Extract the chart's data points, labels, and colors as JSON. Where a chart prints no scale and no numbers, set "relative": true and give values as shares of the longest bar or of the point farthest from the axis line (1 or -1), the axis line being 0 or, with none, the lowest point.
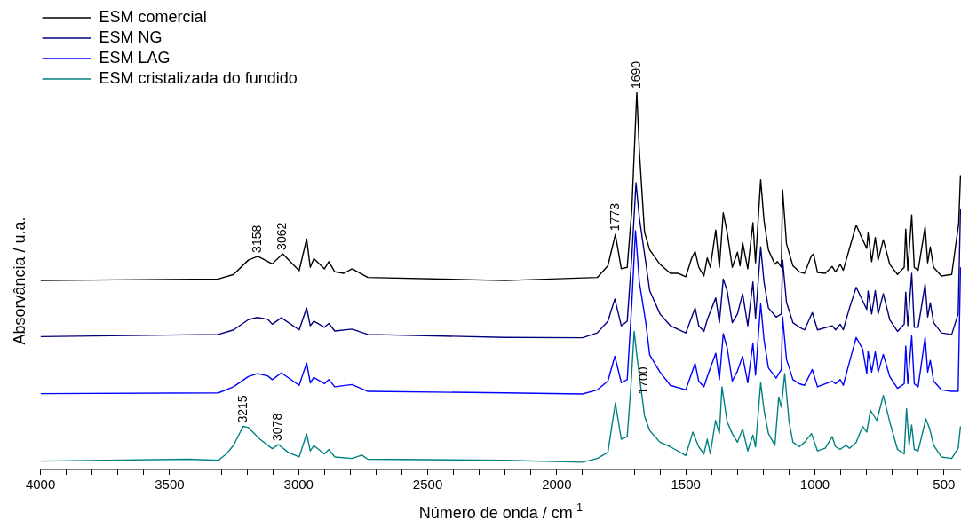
{
  "chart_data": {
    "type": "line",
    "relative": true,
    "xlabel": "Número de onda / cm$^{-1}$",
    "ylabel": "Absorvância / u.a.",
    "xlim": [
      4000,
      434
    ],
    "xticks": [
      4000,
      {
        "value": 3900,
        "label": null
      },
      {
        "value": 3800,
        "label": null
      },
      {
        "value": 3700,
        "label": null
      },
      {
        "value": 3600,
        "label": null
      },
      3500,
      {
        "value": 3400,
        "label": null
      },
      {
        "value": 3300,
        "label": null
      },
      {
        "value": 3200,
        "label": null
      },
      {
        "value": 3100,
        "label": null
      },
      3000,
      {
        "value": 2900,
        "label": null
      },
      {
        "value": 2800,
        "label": null
      },
      {
        "value": 2700,
        "label": null
      },
      {
        "value": 2600,
        "label": null
      },
      2500,
      {
        "value": 2400,
        "label": null
      },
      {
        "value": 2300,
        "label": null
      },
      {
        "value": 2200,
        "label": null
      },
      {
        "value": 2100,
        "label": null
      },
      2000,
      {
        "value": 1900,
        "label": null
      },
      {
        "value": 1800,
        "label": null
      },
      {
        "value": 1700,
        "label": null
      },
      {
        "value": 1600,
        "label": null
      },
      1500,
      {
        "value": 1400,
        "label": null
      },
      {
        "value": 1300,
        "label": null
      },
      {
        "value": 1200,
        "label": null
      },
      {
        "value": 1100,
        "label": null
      },
      1000,
      {
        "value": 900,
        "label": null
      },
      {
        "value": 800,
        "label": null
      },
      {
        "value": 700,
        "label": null
      },
      {
        "value": 600,
        "label": null
      },
      500
    ],
    "legend": "top left",
    "marker": "none",
    "line_style": "solid",
    "grid": false,
    "tick_labels": "x",
    "series": [
      {
        "name": "ESM comercial",
        "color": "#000000",
        "x": [
          4000,
          3311,
          3252,
          3195,
          3158,
          3102,
          3062,
          2998,
          2969,
          2955,
          2941,
          2900,
          2883,
          2860,
          2825,
          2793,
          2732,
          2200,
          1843,
          1802,
          1773,
          1750,
          1727,
          1709,
          1690,
          1680,
          1660,
          1640,
          1600,
          1560,
          1530,
          1500,
          1478,
          1464,
          1450,
          1430,
          1417,
          1405,
          1384,
          1370,
          1355,
          1340,
          1320,
          1300,
          1290,
          1280,
          1260,
          1240,
          1230,
          1210,
          1197,
          1180,
          1155,
          1145,
          1130,
          1125,
          1110,
          1085,
          1060,
          1040,
          1013,
          1005,
          990,
          960,
          933,
          920,
          902,
          890,
          866,
          840,
          815,
          799,
          794,
          780,
          766,
          755,
          735,
          710,
          680,
          654,
          648,
          640,
          625,
          615,
          600,
          573,
          563,
          553,
          540,
          510,
          470,
          443,
          436
        ],
        "values": [
          0.501,
          0.505,
          0.517,
          0.555,
          0.565,
          0.545,
          0.572,
          0.527,
          0.611,
          0.536,
          0.559,
          0.532,
          0.551,
          0.524,
          0.52,
          0.532,
          0.509,
          0.501,
          0.509,
          0.54,
          0.623,
          0.532,
          0.536,
          0.691,
          1.0,
          0.845,
          0.629,
          0.582,
          0.544,
          0.52,
          0.52,
          0.511,
          0.559,
          0.578,
          0.536,
          0.513,
          0.561,
          0.536,
          0.635,
          0.536,
          0.681,
          0.629,
          0.536,
          0.576,
          0.54,
          0.602,
          0.532,
          0.654,
          0.548,
          0.768,
          0.66,
          0.582,
          0.544,
          0.551,
          0.536,
          0.741,
          0.598,
          0.54,
          0.524,
          0.52,
          0.567,
          0.571,
          0.522,
          0.52,
          0.538,
          0.524,
          0.544,
          0.528,
          0.586,
          0.648,
          0.609,
          0.586,
          0.627,
          0.551,
          0.615,
          0.555,
          0.609,
          0.544,
          0.517,
          0.536,
          0.637,
          0.528,
          0.675,
          0.536,
          0.528,
          0.643,
          0.548,
          0.59,
          0.536,
          0.513,
          0.517,
          0.652,
          0.78
        ]
      },
      {
        "name": "ESM NG",
        "color": "#00007f",
        "x": [
          4000,
          3311,
          3252,
          3195,
          3160,
          3120,
          3102,
          3067,
          2998,
          2969,
          2955,
          2941,
          2900,
          2883,
          2860,
          2793,
          2732,
          2200,
          1900,
          1843,
          1802,
          1775,
          1750,
          1727,
          1709,
          1693,
          1680,
          1655,
          1640,
          1600,
          1560,
          1500,
          1464,
          1450,
          1430,
          1417,
          1384,
          1370,
          1355,
          1340,
          1320,
          1300,
          1280,
          1260,
          1240,
          1230,
          1210,
          1197,
          1180,
          1150,
          1130,
          1125,
          1110,
          1085,
          1060,
          1040,
          1010,
          990,
          933,
          920,
          902,
          890,
          866,
          840,
          815,
          799,
          794,
          780,
          766,
          755,
          735,
          710,
          680,
          654,
          648,
          640,
          625,
          615,
          600,
          573,
          563,
          553,
          540,
          510,
          470,
          445,
          436
        ],
        "values": [
          0.352,
          0.358,
          0.37,
          0.397,
          0.403,
          0.398,
          0.385,
          0.402,
          0.37,
          0.428,
          0.381,
          0.393,
          0.377,
          0.387,
          0.367,
          0.372,
          0.358,
          0.35,
          0.349,
          0.362,
          0.393,
          0.452,
          0.381,
          0.393,
          0.567,
          0.76,
          0.667,
          0.548,
          0.474,
          0.412,
          0.381,
          0.362,
          0.428,
          0.381,
          0.366,
          0.397,
          0.455,
          0.389,
          0.505,
          0.474,
          0.389,
          0.412,
          0.466,
          0.381,
          0.497,
          0.401,
          0.59,
          0.497,
          0.428,
          0.404,
          0.412,
          0.555,
          0.443,
          0.389,
          0.377,
          0.37,
          0.416,
          0.37,
          0.381,
          0.37,
          0.385,
          0.37,
          0.428,
          0.483,
          0.447,
          0.424,
          0.473,
          0.412,
          0.474,
          0.412,
          0.466,
          0.397,
          0.366,
          0.385,
          0.47,
          0.381,
          0.52,
          0.377,
          0.377,
          0.491,
          0.404,
          0.442,
          0.389,
          0.362,
          0.358,
          0.412,
          0.691
        ]
      },
      {
        "name": "ESM LAG",
        "color": "#0000ff",
        "x": [
          4000,
          3311,
          3252,
          3195,
          3160,
          3120,
          3102,
          3067,
          2998,
          2969,
          2955,
          2941,
          2900,
          2883,
          2860,
          2793,
          2732,
          2200,
          1900,
          1843,
          1802,
          1775,
          1750,
          1727,
          1709,
          1695,
          1680,
          1655,
          1640,
          1600,
          1560,
          1500,
          1464,
          1450,
          1430,
          1417,
          1384,
          1370,
          1355,
          1340,
          1320,
          1300,
          1280,
          1260,
          1240,
          1230,
          1210,
          1197,
          1180,
          1150,
          1130,
          1125,
          1110,
          1085,
          1060,
          1040,
          1010,
          990,
          933,
          920,
          902,
          890,
          866,
          840,
          815,
          799,
          794,
          780,
          766,
          755,
          735,
          710,
          680,
          654,
          648,
          640,
          625,
          615,
          600,
          573,
          563,
          553,
          540,
          510,
          470,
          445,
          436
        ],
        "values": [
          0.201,
          0.203,
          0.219,
          0.246,
          0.254,
          0.248,
          0.238,
          0.256,
          0.223,
          0.282,
          0.23,
          0.244,
          0.227,
          0.238,
          0.219,
          0.225,
          0.207,
          0.203,
          0.2,
          0.211,
          0.234,
          0.3,
          0.23,
          0.238,
          0.443,
          0.633,
          0.497,
          0.389,
          0.304,
          0.258,
          0.223,
          0.211,
          0.281,
          0.234,
          0.219,
          0.246,
          0.308,
          0.238,
          0.36,
          0.323,
          0.234,
          0.261,
          0.3,
          0.23,
          0.335,
          0.25,
          0.439,
          0.343,
          0.269,
          0.242,
          0.265,
          0.404,
          0.292,
          0.238,
          0.227,
          0.223,
          0.265,
          0.219,
          0.234,
          0.227,
          0.238,
          0.223,
          0.285,
          0.35,
          0.319,
          0.254,
          0.313,
          0.258,
          0.312,
          0.258,
          0.305,
          0.246,
          0.215,
          0.227,
          0.327,
          0.227,
          0.354,
          0.227,
          0.219,
          0.35,
          0.258,
          0.289,
          0.234,
          0.211,
          0.207,
          0.207,
          0.536
        ]
      },
      {
        "name": "ESM cristalizada do fundido",
        "color": "#008080",
        "x": [
          4000,
          3427,
          3311,
          3280,
          3252,
          3215,
          3195,
          3150,
          3102,
          3078,
          3040,
          2998,
          2969,
          2955,
          2941,
          2900,
          2883,
          2860,
          2793,
          2755,
          2732,
          2200,
          1900,
          1843,
          1802,
          1773,
          1750,
          1727,
          1712,
          1700,
          1690,
          1660,
          1640,
          1600,
          1560,
          1500,
          1473,
          1450,
          1430,
          1417,
          1405,
          1385,
          1370,
          1360,
          1340,
          1320,
          1300,
          1280,
          1260,
          1240,
          1230,
          1210,
          1197,
          1180,
          1155,
          1140,
          1130,
          1117,
          1100,
          1085,
          1060,
          1040,
          1013,
          990,
          960,
          933,
          920,
          902,
          880,
          866,
          840,
          815,
          799,
          785,
          760,
          735,
          710,
          680,
          654,
          645,
          635,
          625,
          615,
          600,
          570,
          555,
          540,
          510,
          470,
          445,
          436
        ],
        "values": [
          0.022,
          0.027,
          0.024,
          0.041,
          0.064,
          0.114,
          0.111,
          0.08,
          0.055,
          0.066,
          0.045,
          0.033,
          0.094,
          0.049,
          0.063,
          0.041,
          0.053,
          0.033,
          0.029,
          0.038,
          0.027,
          0.024,
          0.019,
          0.029,
          0.045,
          0.176,
          0.08,
          0.087,
          0.227,
          0.366,
          0.304,
          0.142,
          0.103,
          0.072,
          0.06,
          0.037,
          0.099,
          0.06,
          0.041,
          0.08,
          0.041,
          0.13,
          0.095,
          0.219,
          0.126,
          0.095,
          0.072,
          0.107,
          0.049,
          0.091,
          0.06,
          0.23,
          0.157,
          0.095,
          0.064,
          0.192,
          0.165,
          0.254,
          0.126,
          0.072,
          0.06,
          0.072,
          0.095,
          0.049,
          0.056,
          0.087,
          0.06,
          0.053,
          0.064,
          0.056,
          0.072,
          0.114,
          0.099,
          0.157,
          0.13,
          0.196,
          0.126,
          0.053,
          0.041,
          0.161,
          0.064,
          0.118,
          0.053,
          0.049,
          0.134,
          0.107,
          0.064,
          0.033,
          0.029,
          0.056,
          0.114
        ]
      }
    ],
    "annotations": [
      {
        "text": "3158",
        "x": 3158,
        "y": 0.565
      },
      {
        "text": "3062",
        "x": 3062,
        "y": 0.572
      },
      {
        "text": "1773",
        "x": 1773,
        "y": 0.623
      },
      {
        "text": "1690",
        "x": 1690,
        "y": 1.0
      },
      {
        "text": "3215",
        "x": 3215,
        "y": 0.114
      },
      {
        "text": "3078",
        "x": 3078,
        "y": 0.066
      },
      {
        "text": "1700",
        "x": 1700,
        "y": 0.366
      }
    ]
  }
}
